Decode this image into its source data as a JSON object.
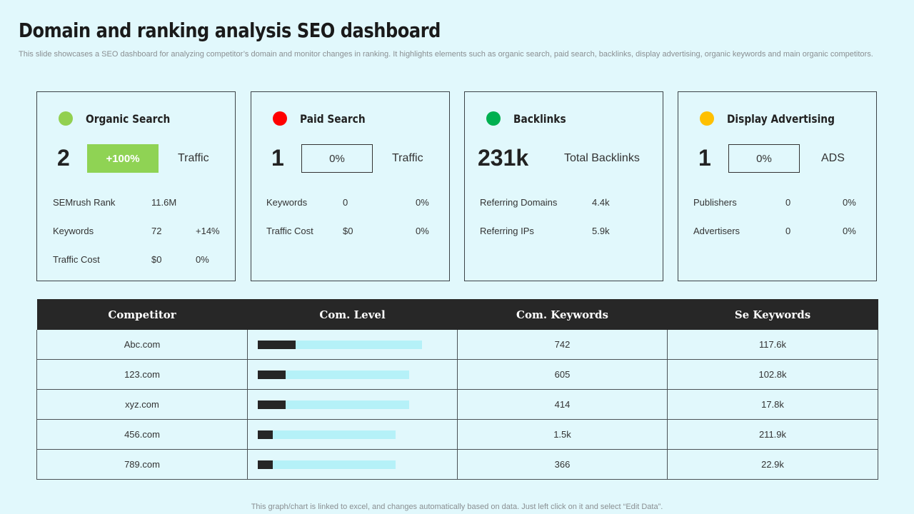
{
  "page": {
    "title": "Domain and ranking analysis SEO dashboard",
    "subtitle": "This slide showcases a SEO dashboard for analyzing competitor’s domain and monitor changes in ranking. It highlights elements such as organic search, paid search, backlinks, display advertising, organic keywords and main organic competitors.",
    "footer": "This graph/chart is linked to excel,  and changes automatically based on data. Just left click on it and select “Edit Data”."
  },
  "cards": [
    {
      "title": "Organic Search",
      "dot_color": "#92d050",
      "big": "2",
      "badge": "+100%",
      "badge_style": "green",
      "metric": "Traffic",
      "stats": [
        {
          "label": "SEMrush Rank",
          "v1": "11.6M",
          "v2": ""
        },
        {
          "label": "Keywords",
          "v1": "72",
          "v2": "+14%"
        },
        {
          "label": "Traffic  Cost",
          "v1": "$0",
          "v2": "0%"
        }
      ]
    },
    {
      "title": "Paid Search",
      "dot_color": "#ff0000",
      "big": "1",
      "badge": "0%",
      "badge_style": "outline",
      "metric": "Traffic",
      "stats": [
        {
          "label": "Keywords",
          "v1": "0",
          "v2": "0%"
        },
        {
          "label": "Traffic  Cost",
          "v1": "$0",
          "v2": "0%"
        }
      ]
    },
    {
      "title": "Backlinks",
      "dot_color": "#00b050",
      "big": "231k",
      "badge": "",
      "badge_style": "none",
      "metric": "Total Backlinks",
      "stats": [
        {
          "label": "Referring  Domains",
          "v1": "4.4k",
          "v2": ""
        },
        {
          "label": "Referring  IPs",
          "v1": "5.9k",
          "v2": ""
        }
      ]
    },
    {
      "title": "Display Advertising",
      "dot_color": "#ffc000",
      "big": "1",
      "badge": "0%",
      "badge_style": "outline",
      "metric": "ADS",
      "stats": [
        {
          "label": "Publishers",
          "v1": "0",
          "v2": "0%"
        },
        {
          "label": "Advertisers",
          "v1": "0",
          "v2": "0%"
        }
      ]
    }
  ],
  "table": {
    "headers": [
      "Competitor",
      "Com. Level",
      "Com. Keywords",
      "Se Keywords"
    ],
    "rows": [
      {
        "competitor": "Abc.com",
        "com_level": 0.23,
        "com_level_scale": 1.0,
        "com_keywords": "742",
        "se_keywords": "117.6k"
      },
      {
        "competitor": "123.com",
        "com_level": 0.17,
        "com_level_scale": 0.92,
        "com_keywords": "605",
        "se_keywords": "102.8k"
      },
      {
        "competitor": "xyz.com",
        "com_level": 0.17,
        "com_level_scale": 0.92,
        "com_keywords": "414",
        "se_keywords": "17.8k"
      },
      {
        "competitor": "456.com",
        "com_level": 0.09,
        "com_level_scale": 0.84,
        "com_keywords": "1.5k",
        "se_keywords": "211.9k"
      },
      {
        "competitor": "789.com",
        "com_level": 0.09,
        "com_level_scale": 0.84,
        "com_keywords": "366",
        "se_keywords": "22.9k"
      }
    ]
  }
}
